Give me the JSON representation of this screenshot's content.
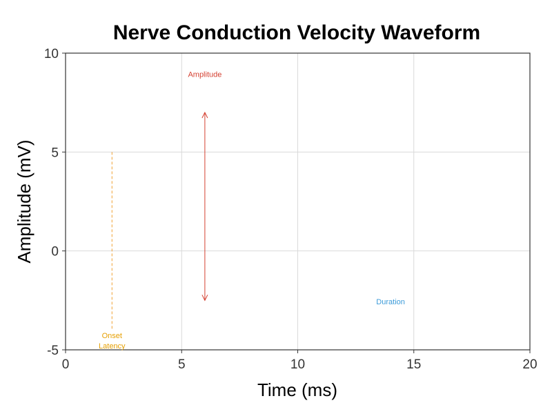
{
  "chart_data": {
    "type": "line",
    "title": "Nerve Conduction Velocity Waveform",
    "xlabel": "Time (ms)",
    "ylabel": "Amplitude (mV)",
    "xlim": [
      0,
      20
    ],
    "ylim": [
      -5,
      10
    ],
    "x_ticks": [
      0,
      5,
      10,
      15,
      20
    ],
    "y_ticks": [
      -5,
      0,
      5,
      10
    ],
    "grid": true,
    "series": [],
    "annotations": [
      {
        "type": "vline-dashed",
        "x": 2,
        "y_from": -4,
        "y_to": 5,
        "color": "#f0a030"
      },
      {
        "type": "text",
        "lines": [
          "Onset",
          "Latency"
        ],
        "x": 2,
        "y": -4.4,
        "color": "#e69f00"
      },
      {
        "type": "double-arrow",
        "x": 6,
        "y_from": -2.5,
        "y_to": 7,
        "color": "#d43f30"
      },
      {
        "type": "text",
        "lines": [
          "Amplitude"
        ],
        "x": 6,
        "y": 8.8,
        "color": "#d43f30"
      },
      {
        "type": "text",
        "lines": [
          "Duration"
        ],
        "x": 14,
        "y": -2.7,
        "color": "#3a9ad9"
      }
    ]
  }
}
